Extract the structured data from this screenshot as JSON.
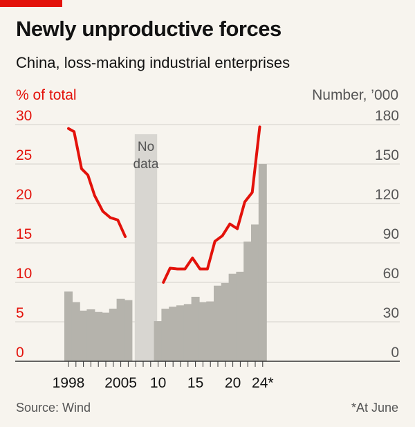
{
  "header": {
    "title": "Newly unproductive forces",
    "subtitle": "China, loss-making industrial enterprises"
  },
  "footer": {
    "source": "Source: Wind",
    "footnote": "*At June"
  },
  "colors": {
    "line": "#e3120b",
    "bars": "#b5b3ac",
    "band": "#d8d6d1",
    "axis": "#333333",
    "grid": "#d3d1cb",
    "right_ticks": "#555555",
    "left_ticks": "#e3120b"
  },
  "chart_data": {
    "type": "bar+line",
    "left_axis": {
      "label": "% of total",
      "ticks": [
        0,
        5,
        10,
        15,
        20,
        25,
        30
      ],
      "range": [
        0,
        30
      ]
    },
    "right_axis": {
      "label": "Number, ’000",
      "ticks": [
        0,
        30,
        60,
        90,
        120,
        150,
        180
      ],
      "range": [
        0,
        180
      ]
    },
    "x_tick_labels": [
      {
        "year": 1998,
        "label": "1998"
      },
      {
        "year": 2005,
        "label": "2005"
      },
      {
        "year": 2010,
        "label": "10"
      },
      {
        "year": 2015,
        "label": "15"
      },
      {
        "year": 2020,
        "label": "20"
      },
      {
        "year": 2024,
        "label": "24*"
      }
    ],
    "no_data_band": {
      "from": 2007,
      "to": 2009,
      "label_lines": [
        "No",
        "data"
      ]
    },
    "bars_series": {
      "name": "Number, ’000",
      "axis": "right",
      "data": [
        {
          "year": 1998,
          "value": 53
        },
        {
          "year": 1999,
          "value": 45
        },
        {
          "year": 2000,
          "value": 38.5
        },
        {
          "year": 2001,
          "value": 39.5
        },
        {
          "year": 2002,
          "value": 37.5
        },
        {
          "year": 2003,
          "value": 37
        },
        {
          "year": 2004,
          "value": 40
        },
        {
          "year": 2005,
          "value": 47.5
        },
        {
          "year": 2006,
          "value": 46.5
        },
        {
          "year": 2010,
          "value": 30.5
        },
        {
          "year": 2011,
          "value": 40
        },
        {
          "year": 2012,
          "value": 41.5
        },
        {
          "year": 2013,
          "value": 42.5
        },
        {
          "year": 2014,
          "value": 43.5
        },
        {
          "year": 2015,
          "value": 49
        },
        {
          "year": 2016,
          "value": 45
        },
        {
          "year": 2017,
          "value": 45.5
        },
        {
          "year": 2018,
          "value": 57.5
        },
        {
          "year": 2019,
          "value": 59.5
        },
        {
          "year": 2020,
          "value": 66.5
        },
        {
          "year": 2021,
          "value": 68
        },
        {
          "year": 2022,
          "value": 91
        },
        {
          "year": 2023,
          "value": 104
        },
        {
          "year": 2024,
          "value": 150
        }
      ]
    },
    "line_series": {
      "name": "% of total",
      "axis": "left",
      "segments": [
        [
          {
            "x": 1998,
            "y": 29.5
          },
          {
            "x": 1998.75,
            "y": 29.1
          },
          {
            "x": 1999.75,
            "y": 24.4
          },
          {
            "x": 2000.6,
            "y": 23.6
          },
          {
            "x": 2001.5,
            "y": 21.0
          },
          {
            "x": 2002.6,
            "y": 19.0
          },
          {
            "x": 2003.6,
            "y": 18.2
          },
          {
            "x": 2004.6,
            "y": 17.9
          },
          {
            "x": 2005.6,
            "y": 15.8
          }
        ],
        [
          {
            "x": 2010.7,
            "y": 10.0
          },
          {
            "x": 2011.6,
            "y": 11.8
          },
          {
            "x": 2012.6,
            "y": 11.7
          },
          {
            "x": 2013.6,
            "y": 11.7
          },
          {
            "x": 2014.6,
            "y": 13.1
          },
          {
            "x": 2015.6,
            "y": 11.7
          },
          {
            "x": 2016.6,
            "y": 11.7
          },
          {
            "x": 2017.6,
            "y": 15.2
          },
          {
            "x": 2018.6,
            "y": 15.9
          },
          {
            "x": 2019.6,
            "y": 17.4
          },
          {
            "x": 2020.6,
            "y": 16.8
          },
          {
            "x": 2021.6,
            "y": 20.2
          },
          {
            "x": 2022.6,
            "y": 21.4
          },
          {
            "x": 2023.6,
            "y": 29.7
          }
        ]
      ]
    },
    "grid": true,
    "legend": "none"
  }
}
